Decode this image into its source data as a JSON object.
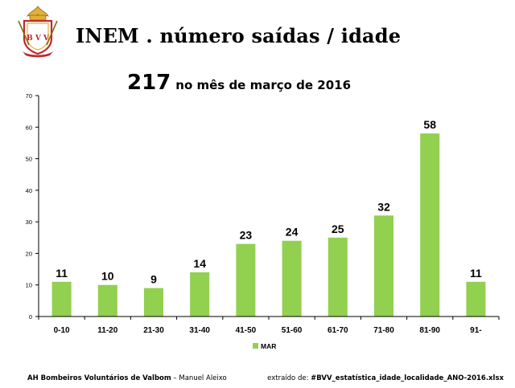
{
  "header": {
    "logo_text": "B V V",
    "title": "INEM . número saídas / idade"
  },
  "summary": {
    "total": "217",
    "subtitle": "no mês de março de 2016"
  },
  "footer": {
    "organization": "AH Bombeiros Voluntários de Valbom",
    "separator": " – ",
    "author": "Manuel Aleixo",
    "source_prefix": "extraído de: ",
    "source_file": "#BVV_estatística_idade_localidade_ANO-2016.xlsx"
  },
  "colors": {
    "bar": "#92d050",
    "axis": "#000000",
    "logo_red": "#c0282e",
    "logo_gold": "#e0b03a"
  },
  "chart_data": {
    "type": "bar",
    "categories": [
      "0-10",
      "11-20",
      "21-30",
      "31-40",
      "41-50",
      "51-60",
      "61-70",
      "71-80",
      "81-90",
      "91-"
    ],
    "series": [
      {
        "name": "MAR",
        "values": [
          11,
          10,
          9,
          14,
          23,
          24,
          25,
          32,
          58,
          11
        ]
      }
    ],
    "ylim": [
      0,
      70
    ],
    "yticks": [
      0,
      10,
      20,
      30,
      40,
      50,
      60,
      70
    ],
    "legend": "bottom-center",
    "grid": false
  }
}
